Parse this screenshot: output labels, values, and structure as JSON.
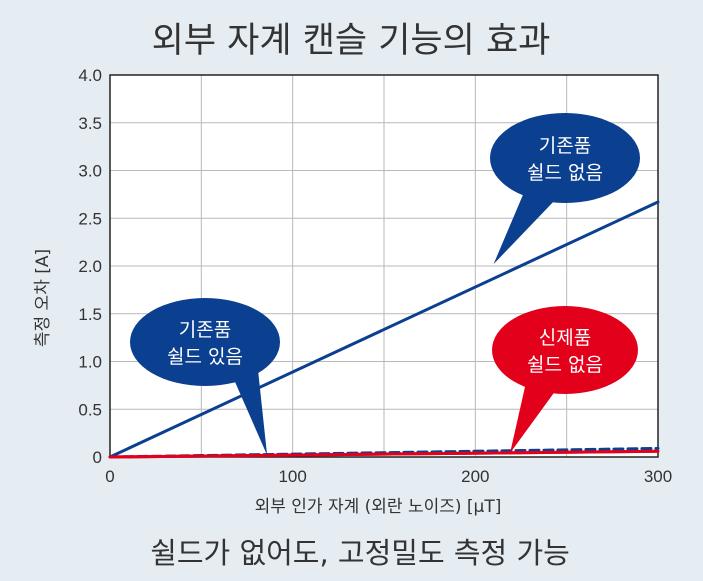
{
  "title": "외부 자계 캔슬 기능의 효과",
  "footer": "쉴드가 없어도, 고정밀도 측정 가능",
  "colors": {
    "background": "#e6edf2",
    "plot_background": "#ffffff",
    "grid": "#b9b9b9",
    "blue": "#0b3f8f",
    "red": "#e3001b",
    "text": "#333333"
  },
  "chart_data": {
    "type": "line",
    "xlabel": "외부 인가 자계 (외란 노이즈) [μT]",
    "ylabel": "측정 오차 [A]",
    "xlim": [
      0,
      300
    ],
    "ylim": [
      0,
      4.0
    ],
    "x_ticks": [
      "0",
      "100",
      "200",
      "300"
    ],
    "y_ticks": [
      "0",
      "0.5",
      "1.0",
      "1.5",
      "2.0",
      "2.5",
      "3.0",
      "3.5",
      "4.0"
    ],
    "grid": true,
    "series": [
      {
        "name": "기존품 쉴드 없음",
        "color": "#0b3f8f",
        "style": "solid",
        "x": [
          0,
          300
        ],
        "y": [
          0,
          2.67
        ]
      },
      {
        "name": "기존품 쉴드 있음",
        "color": "#0b3f8f",
        "style": "dashed",
        "x": [
          0,
          300
        ],
        "y": [
          0,
          0.09
        ]
      },
      {
        "name": "신제품 쉴드 없음",
        "color": "#e3001b",
        "style": "solid",
        "x": [
          0,
          300
        ],
        "y": [
          0,
          0.06
        ]
      }
    ],
    "annotations": [
      {
        "lines": [
          "기존품",
          "쉴드 없음"
        ],
        "color": "#0b3f8f",
        "x": 210,
        "y": 2.02
      },
      {
        "lines": [
          "기존품",
          "쉴드 있음"
        ],
        "color": "#0b3f8f",
        "x": 86,
        "y": 0.02
      },
      {
        "lines": [
          "신제품",
          "쉴드 없음"
        ],
        "color": "#e3001b",
        "x": 219,
        "y": 0.04
      }
    ]
  }
}
